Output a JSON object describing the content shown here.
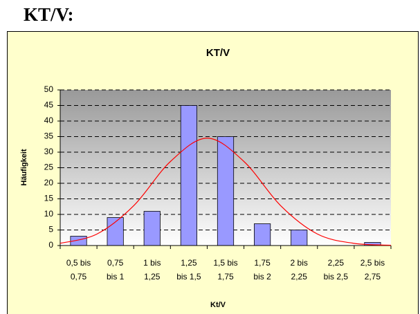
{
  "heading": "KT/V:",
  "chart_data": {
    "type": "bar",
    "title": "KT/V",
    "ylabel": "Häufigkeit",
    "xlabel": "Kt/V",
    "categories": [
      [
        "0,5 bis",
        "0,75"
      ],
      [
        "0,75",
        "bis 1"
      ],
      [
        "1 bis",
        "1,25"
      ],
      [
        "1,25",
        "bis 1,5"
      ],
      [
        "1,5 bis",
        "1,75"
      ],
      [
        "1,75",
        "bis 2"
      ],
      [
        "2 bis",
        "2,25"
      ],
      [
        "2,25",
        "bis 2,5"
      ],
      [
        "2,5 bis",
        "2,75"
      ]
    ],
    "values": [
      3,
      9,
      11,
      45,
      35,
      7,
      5,
      0,
      1
    ],
    "color": "#9999ff",
    "line": {
      "color": "#ff0000",
      "x": [
        0.5,
        0.75,
        1,
        1.25,
        1.5,
        1.75,
        2,
        2.25,
        2.5,
        2.75
      ],
      "values": [
        0.7,
        3.7,
        12.8,
        27,
        34.5,
        27,
        12.8,
        3.7,
        0.7,
        0.1
      ]
    },
    "xlim": [
      0.5,
      2.75
    ],
    "ylim": [
      0,
      50
    ],
    "yticks": [
      0,
      5,
      10,
      15,
      20,
      25,
      30,
      35,
      40,
      45,
      50
    ],
    "grid": true
  }
}
